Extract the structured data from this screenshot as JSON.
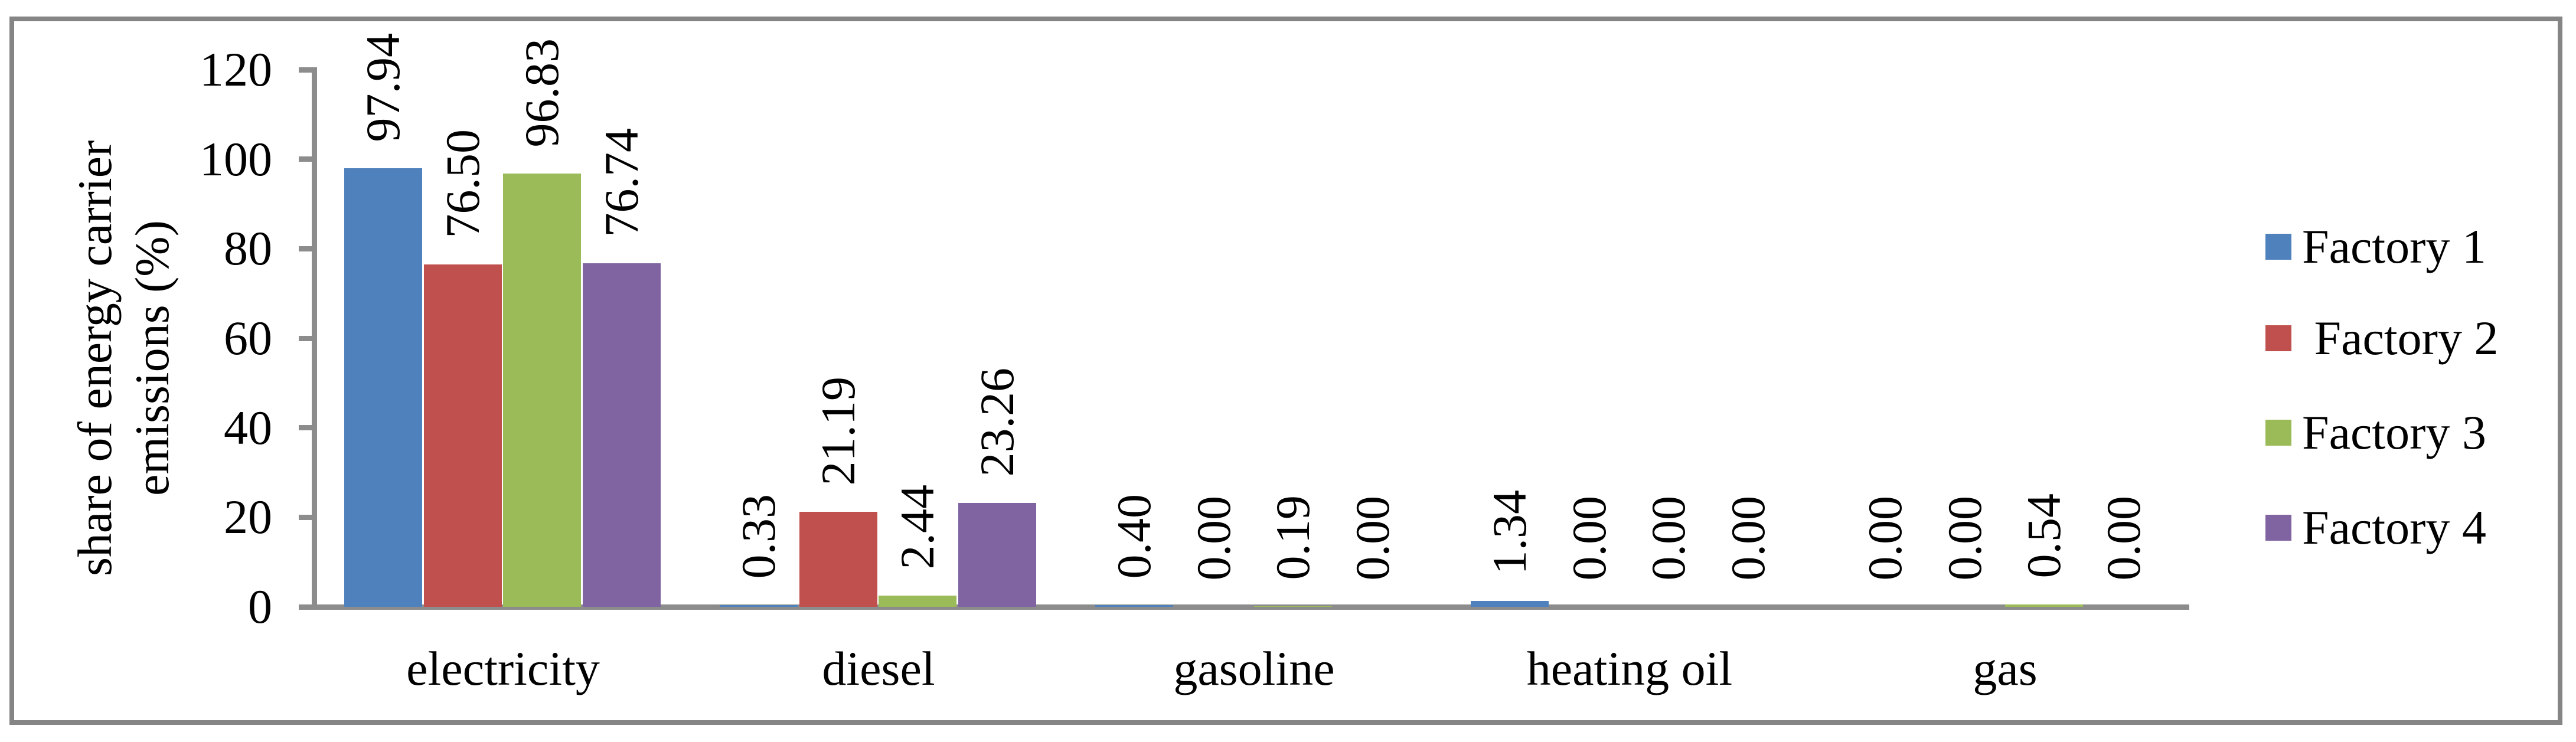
{
  "figure": {
    "border_color": "#858585",
    "background": "#ffffff"
  },
  "chart_data": {
    "type": "bar",
    "title": "",
    "ylabel": "share of energy carrier emissions (%)",
    "ylabel_lines": [
      "share of energy carrier",
      "emissions (%)"
    ],
    "xlabel": "",
    "categories": [
      "electricity",
      "diesel",
      "gasoline",
      "heating oil",
      "gas"
    ],
    "series": [
      {
        "name": "Factory 1",
        "color": "#4F81BD",
        "values": [
          97.94,
          0.33,
          0.4,
          1.34,
          0.0
        ]
      },
      {
        "name": " Factory 2",
        "color": "#C0504D",
        "values": [
          76.5,
          21.19,
          0.0,
          0.0,
          0.0
        ]
      },
      {
        "name": "Factory 3",
        "color": "#9BBB59",
        "values": [
          96.83,
          2.44,
          0.19,
          0.0,
          0.54
        ]
      },
      {
        "name": "Factory 4",
        "color": "#8064A2",
        "values": [
          76.74,
          23.26,
          0.0,
          0.0,
          0.0
        ]
      }
    ],
    "ylim": [
      0,
      120
    ],
    "yticks": [
      0,
      20,
      40,
      60,
      80,
      100,
      120
    ],
    "value_label_decimals": 2,
    "grid": false,
    "legend_position": "right",
    "axis_color": "#8c8c8c",
    "text_color": "#000000"
  }
}
